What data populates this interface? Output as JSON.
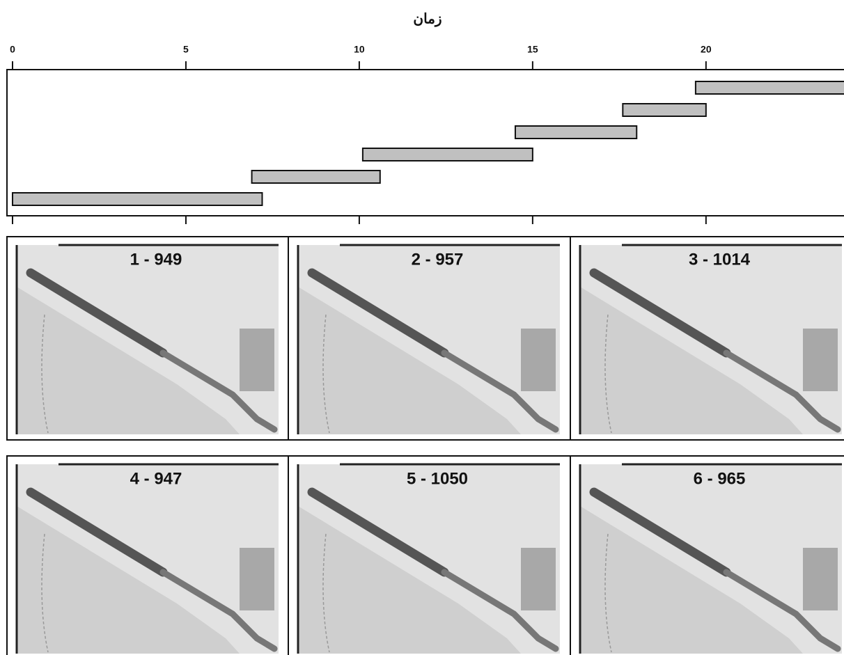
{
  "chart_data": {
    "type": "gantt",
    "x_label": "زمان",
    "xlim": [
      0,
      24
    ],
    "xticks": [
      0,
      5,
      10,
      15,
      20
    ],
    "tasks": [
      {
        "start": 0,
        "end": 7.2
      },
      {
        "start": 6.9,
        "end": 10.6
      },
      {
        "start": 10.1,
        "end": 15
      },
      {
        "start": 14.5,
        "end": 18
      },
      {
        "start": 17.6,
        "end": 20
      },
      {
        "start": 19.7,
        "end": 24
      }
    ],
    "color": "#c0c0c0",
    "panels": [
      "1 - 949",
      "2 - 957",
      "3 - 1014",
      "4 - 947",
      "5 - 1050",
      "6 - 965"
    ]
  }
}
